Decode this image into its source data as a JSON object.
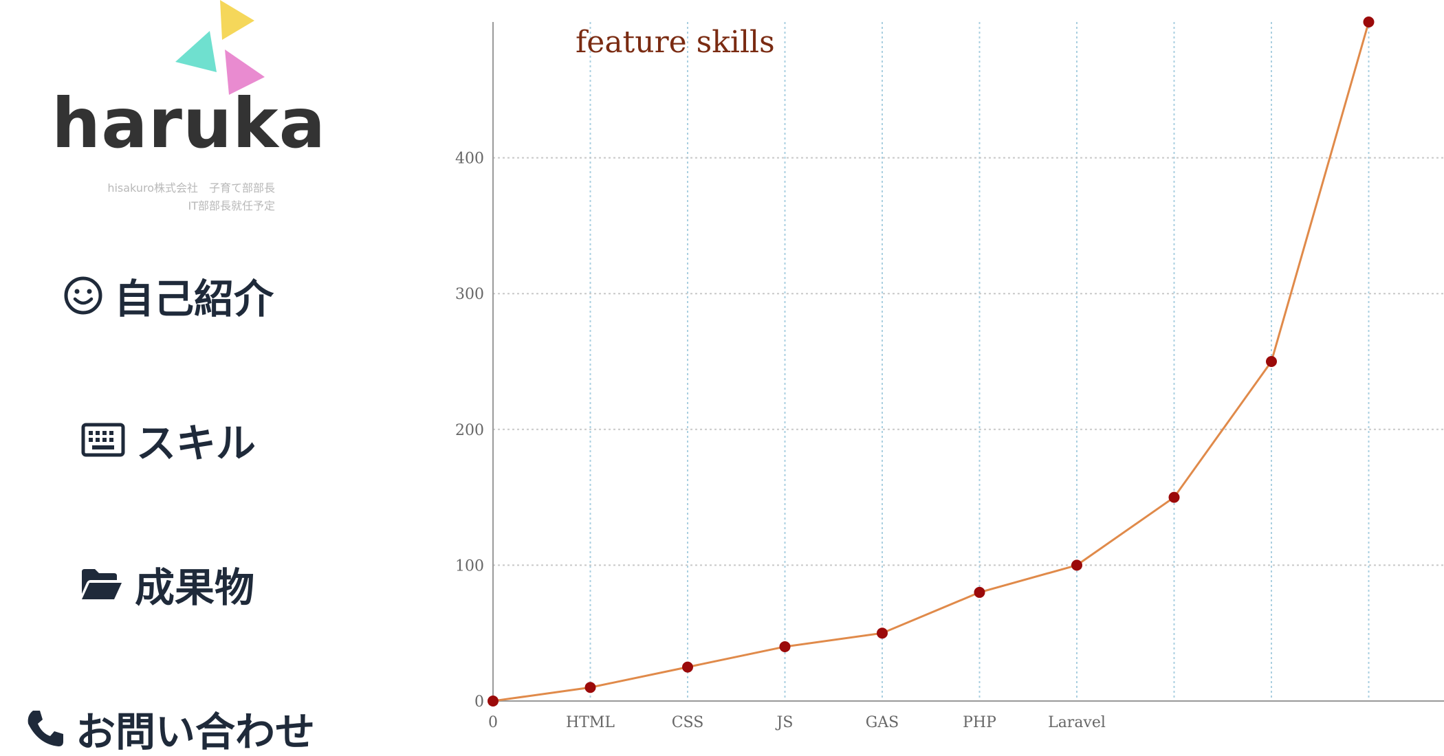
{
  "sidebar": {
    "logo": {
      "name": "haruka",
      "subtitle_line1": "hisakuro株式会社　子育て部部長",
      "subtitle_line2": "IT部部長就任予定",
      "colors": [
        "#f5d75a",
        "#6fe0cf",
        "#e98bd0"
      ]
    },
    "nav": [
      {
        "label": "自己紹介",
        "icon": "smiley-icon"
      },
      {
        "label": "スキル",
        "icon": "keyboard-icon"
      },
      {
        "label": "成果物",
        "icon": "folder-open-icon"
      },
      {
        "label": "お問い合わせ",
        "icon": "phone-icon"
      }
    ]
  },
  "chart_data": {
    "type": "line",
    "title": "feature skills",
    "categories": [
      "0",
      "HTML",
      "CSS",
      "JS",
      "GAS",
      "PHP",
      "Laravel",
      "",
      "",
      ""
    ],
    "values": [
      0,
      10,
      25,
      40,
      50,
      80,
      100,
      150,
      250,
      500
    ],
    "y_ticks": [
      0,
      100,
      200,
      300,
      400
    ],
    "ylim": [
      0,
      500
    ],
    "grid": true,
    "colors": {
      "line": "#e08a4a",
      "point": "#9b0a0a",
      "grid": "#a9cfe0",
      "axis": "#999999",
      "title": "#7a2b12"
    }
  }
}
